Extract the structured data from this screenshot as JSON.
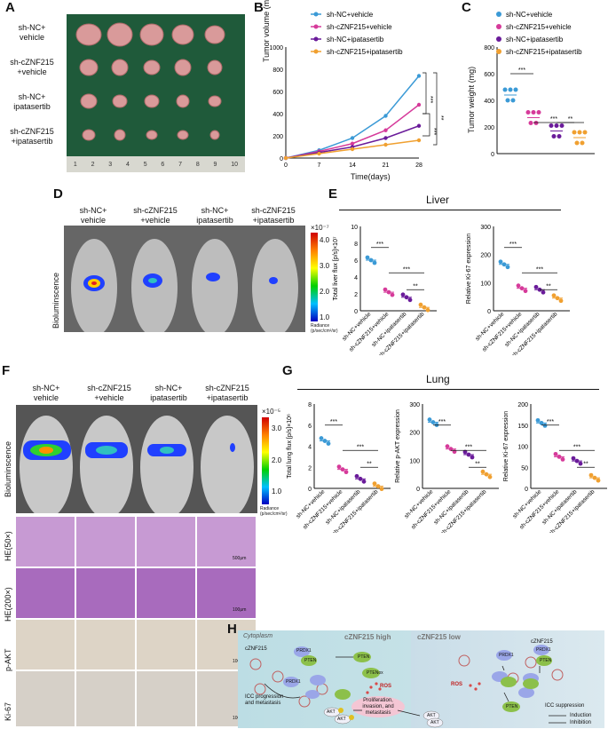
{
  "panels": {
    "A": "A",
    "B": "B",
    "C": "C",
    "D": "D",
    "E": "E",
    "F": "F",
    "G": "G",
    "H": "H"
  },
  "groups": {
    "g1": [
      "sh-NC+",
      "vehicle"
    ],
    "g2": [
      "sh-cZNF215",
      "+vehicle"
    ],
    "g3": [
      "sh-NC+",
      "ipatasertib"
    ],
    "g4": [
      "sh-cZNF215",
      "+ipatasertib"
    ]
  },
  "panelA": {
    "ruler_ticks": [
      "1",
      "2",
      "3",
      "4",
      "5",
      "6",
      "7",
      "8",
      "9",
      "10"
    ]
  },
  "legend": [
    "sh-NC+vehicle",
    "sh-cZNF215+vehicle",
    "sh-NC+ipatasertib",
    "sh-cZNF215+ipatasertib"
  ],
  "colors": {
    "g1": "#3b9ad6",
    "g2": "#d63a9a",
    "g3": "#6a1b9a",
    "g4": "#f0a030"
  },
  "panelB": {
    "ylabel": "Tumor volume (mm³)",
    "xlabel": "Time(days)",
    "yticks": [
      "0",
      "200",
      "400",
      "600",
      "800",
      "1000"
    ],
    "xticks": [
      "0",
      "7",
      "14",
      "21",
      "28"
    ],
    "sig": [
      "***",
      "***",
      "**"
    ]
  },
  "panelC": {
    "ylabel": "Tumor weight (mg)",
    "yticks": [
      "0",
      "200",
      "400",
      "600",
      "800"
    ],
    "sig": [
      "***",
      "***",
      "**"
    ]
  },
  "panelD": {
    "side_label": "Bioluminscence",
    "scale_top": "×10⁻⁷",
    "scale_ticks": [
      "4.0",
      "3.0",
      "2.0",
      "1.0"
    ],
    "scale_units": "Radiance (p/sec/cm²/sr)"
  },
  "panelE": {
    "title": "Liver",
    "ylabel1": "Total liver flux [p/s]×10⁷",
    "ylabel2": "Relative Ki-67 expression",
    "yticks1": [
      "0",
      "2",
      "4",
      "6",
      "8",
      "10"
    ],
    "yticks2": [
      "0",
      "100",
      "200",
      "300"
    ],
    "sig1": [
      "***",
      "***",
      "**"
    ],
    "sig2": [
      "***",
      "***",
      "**"
    ]
  },
  "panelF": {
    "row_labels": [
      "Bioluminscence",
      "HE(50×)",
      "HE(200×)",
      "p-AKT",
      "Ki-67"
    ],
    "scale_top": "×10⁻⁵",
    "scale_ticks": [
      "3.0",
      "2.0",
      "1.0"
    ],
    "scale_units": "Radiance (p/sec/cm²/sr)",
    "scale_bars": [
      "500μm",
      "100μm",
      "100μm",
      "100μm"
    ]
  },
  "panelG": {
    "title": "Lung",
    "ylabel1": "Total lung flux [p/s]×10⁶",
    "ylabel2": "Relative p-AKT expression",
    "ylabel3": "Relative Ki-67 expression",
    "yticks1": [
      "0",
      "2",
      "4",
      "6",
      "8"
    ],
    "yticks2": [
      "0",
      "100",
      "200",
      "300"
    ],
    "yticks3": [
      "0",
      "50",
      "100",
      "150",
      "200"
    ],
    "sig": [
      "***",
      "***",
      "**"
    ]
  },
  "panelH": {
    "cytoplasm": "Cytoplasm",
    "high": "cZNF215 high",
    "low": "cZNF215 low",
    "czn": "cZNF215",
    "prdx1": "PRDX1",
    "pten": "PTEN",
    "ptenox": "PTENox",
    "ros": "ROS",
    "akt": "AKT",
    "p": "p",
    "progression": "ICC progression and metastasis",
    "outcome": "Proliferation, invasion, and metastasis",
    "suppression": "ICC suppression",
    "induction": "Induction",
    "inhibition": "Inhibition"
  }
}
